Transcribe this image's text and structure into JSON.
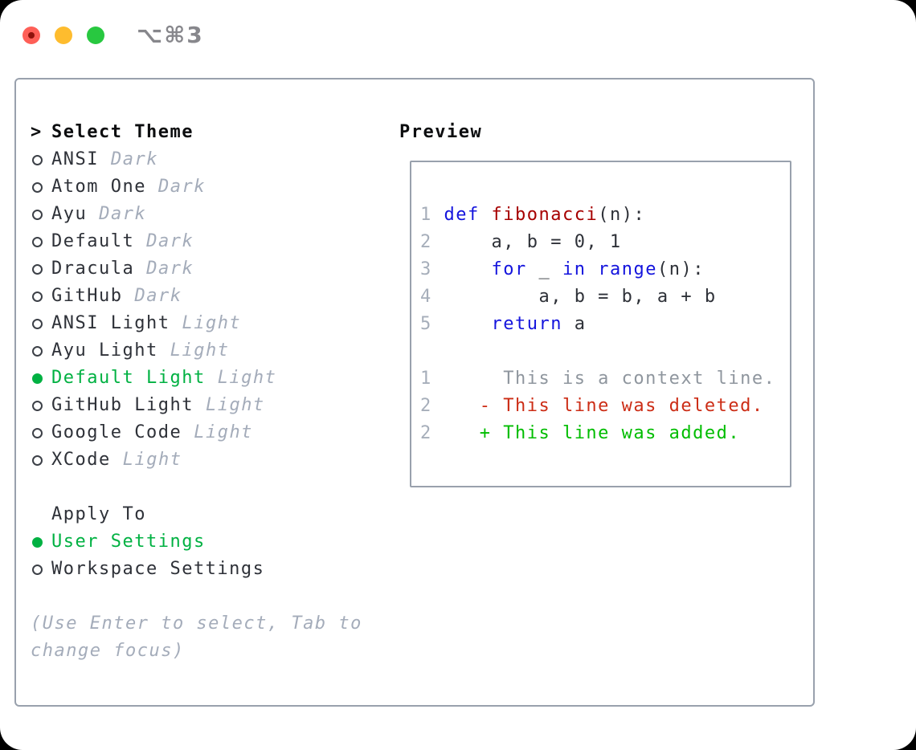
{
  "window": {
    "title": "⌥⌘3"
  },
  "theme_list": {
    "header_marker": ">",
    "header": "Select Theme",
    "items": [
      {
        "label": "ANSI",
        "variant": "Dark",
        "selected": false
      },
      {
        "label": "Atom One",
        "variant": "Dark",
        "selected": false
      },
      {
        "label": "Ayu",
        "variant": "Dark",
        "selected": false
      },
      {
        "label": "Default",
        "variant": "Dark",
        "selected": false
      },
      {
        "label": "Dracula",
        "variant": "Dark",
        "selected": false
      },
      {
        "label": "GitHub",
        "variant": "Dark",
        "selected": false
      },
      {
        "label": "ANSI Light",
        "variant": "Light",
        "selected": false
      },
      {
        "label": "Ayu Light",
        "variant": "Light",
        "selected": false
      },
      {
        "label": "Default Light",
        "variant": "Light",
        "selected": true
      },
      {
        "label": "GitHub Light",
        "variant": "Light",
        "selected": false
      },
      {
        "label": "Google Code",
        "variant": "Light",
        "selected": false
      },
      {
        "label": "XCode",
        "variant": "Light",
        "selected": false
      }
    ]
  },
  "apply_to": {
    "header": "Apply To",
    "items": [
      {
        "label": "User Settings",
        "selected": true
      },
      {
        "label": "Workspace Settings",
        "selected": false
      }
    ]
  },
  "help_lines": [
    "(Use Enter to select, Tab to",
    "change focus)"
  ],
  "preview": {
    "header": "Preview",
    "lines": [
      {
        "tokens": [
          [
            "ln",
            "1"
          ],
          [
            "pl",
            " "
          ],
          [
            "kw",
            "def"
          ],
          [
            "pl",
            " "
          ],
          [
            "fn",
            "fibonacci"
          ],
          [
            "pl",
            "(n):"
          ]
        ]
      },
      {
        "tokens": [
          [
            "ln",
            "2"
          ],
          [
            "pl",
            "     a, b = 0, 1"
          ]
        ]
      },
      {
        "tokens": [
          [
            "ln",
            "3"
          ],
          [
            "pl",
            "     "
          ],
          [
            "kw",
            "for"
          ],
          [
            "pl",
            " _ "
          ],
          [
            "kw",
            "in"
          ],
          [
            "pl",
            " "
          ],
          [
            "kw",
            "range"
          ],
          [
            "pl",
            "(n):"
          ]
        ]
      },
      {
        "tokens": [
          [
            "ln",
            "4"
          ],
          [
            "pl",
            "         a, b = b, a + b"
          ]
        ]
      },
      {
        "tokens": [
          [
            "ln",
            "5"
          ],
          [
            "pl",
            "     "
          ],
          [
            "kw",
            "return"
          ],
          [
            "pl",
            " a"
          ]
        ]
      },
      {
        "tokens": []
      },
      {
        "tokens": [
          [
            "ln",
            "1"
          ],
          [
            "ctx",
            "      This is a context line."
          ]
        ]
      },
      {
        "tokens": [
          [
            "ln",
            "2"
          ],
          [
            "del",
            "    - This line was deleted."
          ]
        ]
      },
      {
        "tokens": [
          [
            "ln",
            "2"
          ],
          [
            "add",
            "    + This line was added."
          ]
        ]
      }
    ]
  },
  "colors": {
    "accent_green": "#00b142",
    "diff_added": "#00bd00",
    "diff_deleted": "#cc2d16",
    "keyword_blue": "#1414dd",
    "function_red": "#a60000",
    "muted_gray": "#a4acba",
    "line_number_gray": "#a6aeba",
    "context_gray": "#8f969e",
    "text_dark": "#2e3138",
    "header_black": "#0c0d0f",
    "border_gray": "#99a1ad",
    "traffic_red": "#fe5f57",
    "traffic_yellow": "#febc2e",
    "traffic_green": "#28c840"
  }
}
